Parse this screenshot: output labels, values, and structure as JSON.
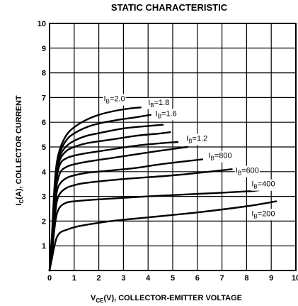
{
  "chart_data": {
    "type": "line",
    "title": "STATIC CHARACTERISTIC",
    "xlabel": {
      "prefix": "V",
      "sub": "CE",
      "suffix": "(V), COLLECTOR-EMITTER VOLTAGE"
    },
    "ylabel": {
      "prefix": "I",
      "sub": "C",
      "suffix": "(A), COLLECTOR CURRENT"
    },
    "xlim": [
      0,
      10
    ],
    "ylim": [
      0,
      10
    ],
    "xticks": [
      "0",
      "1",
      "2",
      "3",
      "4",
      "5",
      "6",
      "7",
      "8",
      "9",
      "10"
    ],
    "yticks": [
      "1",
      "2",
      "3",
      "4",
      "5",
      "6",
      "7",
      "8",
      "9",
      "10"
    ],
    "grid": true,
    "series": [
      {
        "label": {
          "prefix": "I",
          "sub": "B",
          "suffix": "=2.0"
        },
        "label_at": [
          2.2,
          6.85
        ],
        "points": [
          [
            0,
            0
          ],
          [
            0.1,
            1.5
          ],
          [
            0.2,
            3.4
          ],
          [
            0.3,
            4.4
          ],
          [
            0.45,
            5.0
          ],
          [
            0.7,
            5.5
          ],
          [
            1.0,
            5.8
          ],
          [
            1.5,
            6.1
          ],
          [
            2.0,
            6.3
          ],
          [
            2.6,
            6.45
          ],
          [
            3.2,
            6.55
          ],
          [
            3.7,
            6.6
          ]
        ]
      },
      {
        "label": {
          "prefix": "I",
          "sub": "B",
          "suffix": "=1.8"
        },
        "label_at": [
          4.0,
          6.7
        ],
        "points": [
          [
            0,
            0
          ],
          [
            0.1,
            1.4
          ],
          [
            0.2,
            3.3
          ],
          [
            0.3,
            4.3
          ],
          [
            0.45,
            4.85
          ],
          [
            0.7,
            5.3
          ],
          [
            1.0,
            5.55
          ],
          [
            1.5,
            5.8
          ],
          [
            2.0,
            5.95
          ],
          [
            2.8,
            6.1
          ],
          [
            3.5,
            6.2
          ],
          [
            4.1,
            6.3
          ]
        ]
      },
      {
        "label": {
          "prefix": "I",
          "sub": "B",
          "suffix": "=1.6"
        },
        "label_at": [
          4.3,
          6.25
        ],
        "points": [
          [
            0,
            0
          ],
          [
            0.1,
            1.3
          ],
          [
            0.2,
            3.2
          ],
          [
            0.3,
            4.2
          ],
          [
            0.45,
            4.7
          ],
          [
            0.7,
            5.05
          ],
          [
            1.0,
            5.25
          ],
          [
            1.5,
            5.45
          ],
          [
            2.2,
            5.6
          ],
          [
            3.0,
            5.75
          ],
          [
            4.0,
            5.85
          ],
          [
            4.6,
            5.9
          ]
        ]
      },
      {
        "label": null,
        "label_at": null,
        "points": [
          [
            0,
            0
          ],
          [
            0.1,
            1.2
          ],
          [
            0.2,
            3.0
          ],
          [
            0.3,
            4.0
          ],
          [
            0.45,
            4.55
          ],
          [
            0.7,
            4.85
          ],
          [
            1.0,
            5.0
          ],
          [
            1.5,
            5.15
          ],
          [
            2.5,
            5.3
          ],
          [
            3.5,
            5.45
          ],
          [
            4.5,
            5.55
          ],
          [
            4.9,
            5.6
          ]
        ]
      },
      {
        "label": {
          "prefix": "I",
          "sub": "B",
          "suffix": "=1.2"
        },
        "label_at": [
          5.55,
          5.25
        ],
        "points": [
          [
            0,
            0
          ],
          [
            0.1,
            1.1
          ],
          [
            0.2,
            2.8
          ],
          [
            0.3,
            3.8
          ],
          [
            0.45,
            4.35
          ],
          [
            0.7,
            4.55
          ],
          [
            1.0,
            4.65
          ],
          [
            1.5,
            4.75
          ],
          [
            2.5,
            4.9
          ],
          [
            3.5,
            5.05
          ],
          [
            4.5,
            5.15
          ],
          [
            5.2,
            5.2
          ]
        ]
      },
      {
        "label": null,
        "label_at": null,
        "points": [
          [
            0,
            0
          ],
          [
            0.1,
            1.0
          ],
          [
            0.2,
            2.6
          ],
          [
            0.3,
            3.5
          ],
          [
            0.45,
            4.0
          ],
          [
            0.7,
            4.2
          ],
          [
            1.0,
            4.3
          ],
          [
            1.5,
            4.4
          ],
          [
            2.5,
            4.55
          ],
          [
            3.5,
            4.7
          ],
          [
            4.5,
            4.85
          ],
          [
            5.6,
            5.0
          ]
        ]
      },
      {
        "label": {
          "prefix": "I",
          "sub": "B",
          "suffix": "=800"
        },
        "label_at": [
          6.45,
          4.55
        ],
        "points": [
          [
            0,
            0
          ],
          [
            0.1,
            0.9
          ],
          [
            0.2,
            2.3
          ],
          [
            0.3,
            3.2
          ],
          [
            0.45,
            3.55
          ],
          [
            0.7,
            3.75
          ],
          [
            1.0,
            3.85
          ],
          [
            1.5,
            3.95
          ],
          [
            2.5,
            4.05
          ],
          [
            3.5,
            4.15
          ],
          [
            4.5,
            4.3
          ],
          [
            6.2,
            4.5
          ]
        ]
      },
      {
        "label": {
          "prefix": "I",
          "sub": "B",
          "suffix": "=600"
        },
        "label_at": [
          7.55,
          3.95
        ],
        "points": [
          [
            0,
            0
          ],
          [
            0.1,
            0.8
          ],
          [
            0.2,
            2.0
          ],
          [
            0.3,
            2.8
          ],
          [
            0.45,
            3.15
          ],
          [
            0.7,
            3.35
          ],
          [
            1.0,
            3.45
          ],
          [
            1.5,
            3.55
          ],
          [
            3.0,
            3.7
          ],
          [
            5.0,
            3.85
          ],
          [
            6.5,
            4.0
          ],
          [
            7.4,
            4.1
          ]
        ]
      },
      {
        "label": {
          "prefix": "I",
          "sub": "B",
          "suffix": "=400"
        },
        "label_at": [
          8.2,
          3.4
        ],
        "points": [
          [
            0,
            0
          ],
          [
            0.1,
            0.7
          ],
          [
            0.2,
            1.7
          ],
          [
            0.3,
            2.3
          ],
          [
            0.45,
            2.6
          ],
          [
            0.7,
            2.75
          ],
          [
            1.0,
            2.8
          ],
          [
            2.0,
            2.88
          ],
          [
            4.0,
            3.0
          ],
          [
            6.0,
            3.1
          ],
          [
            8.0,
            3.2
          ],
          [
            8.5,
            3.25
          ]
        ]
      },
      {
        "label": {
          "prefix": "I",
          "sub": "B",
          "suffix": "=200"
        },
        "label_at": [
          8.2,
          2.2
        ],
        "points": [
          [
            0,
            0
          ],
          [
            0.1,
            0.5
          ],
          [
            0.2,
            1.0
          ],
          [
            0.3,
            1.35
          ],
          [
            0.45,
            1.55
          ],
          [
            0.7,
            1.65
          ],
          [
            1.0,
            1.75
          ],
          [
            1.5,
            1.85
          ],
          [
            2.5,
            2.0
          ],
          [
            4.0,
            2.15
          ],
          [
            6.0,
            2.35
          ],
          [
            8.0,
            2.6
          ],
          [
            9.2,
            2.8
          ]
        ]
      }
    ]
  }
}
